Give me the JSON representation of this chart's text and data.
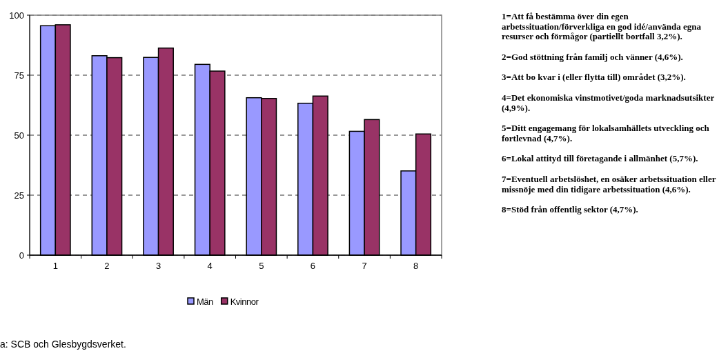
{
  "chart_data": {
    "type": "bar",
    "categories": [
      "1",
      "2",
      "3",
      "4",
      "5",
      "6",
      "7",
      "8"
    ],
    "series": [
      {
        "name": "Män",
        "color": "#9999ff",
        "values": [
          95.6,
          83.1,
          82.4,
          79.5,
          65.6,
          63.3,
          51.6,
          35.1
        ]
      },
      {
        "name": "Kvinnor",
        "color": "#993366",
        "values": [
          96.0,
          82.3,
          86.3,
          76.7,
          65.3,
          66.3,
          56.5,
          50.5
        ]
      }
    ],
    "ylim": [
      0,
      100
    ],
    "yticks": [
      0,
      25,
      50,
      75,
      100
    ],
    "grid": "y",
    "legend": "bottom",
    "annotations": [
      "1=Att få bestämma över din egen arbetssituation/förverkliga en god idé/använda egna resurser och förmågor (partiellt bortfall 3,2%).",
      "2=God stöttning från familj och vänner (4,6%).",
      "3=Att bo kvar i (eller flytta till) området (3,2%).",
      "4=Det ekonomiska vinstmotivet/goda marknadsutsikter (4,9%).",
      "5=Ditt engagemang för lokalsamhällets utveckling och fortlevnad (4,7%).",
      "6=Lokal attityd till företagande i allmänhet (5,7%).",
      "7=Eventuell arbetslöshet, en osäker arbetssituation eller missnöje med din tidigare arbetssituation (4,6%).",
      "8=Stöd från offentlig sektor (4,7%).",
      "a: SCB och Glesbygdsverket."
    ]
  }
}
